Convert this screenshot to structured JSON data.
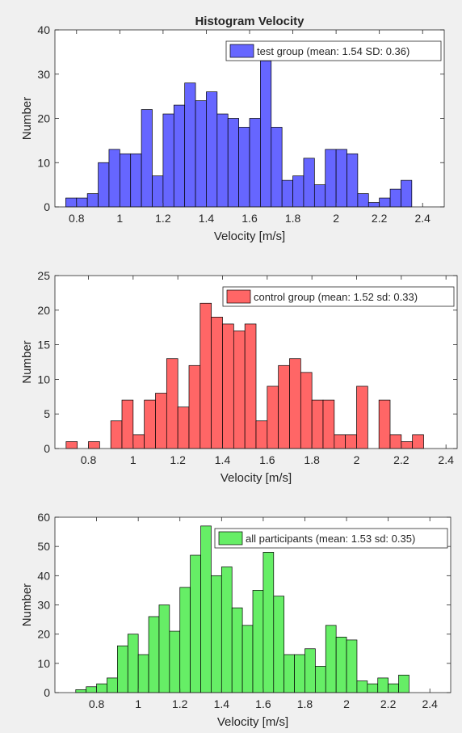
{
  "chart_data": [
    {
      "type": "bar",
      "title": "Histogram Velocity",
      "xlabel": "Velocity [m/s]",
      "ylabel": "Number",
      "xlim": [
        0.7,
        2.5
      ],
      "ylim": [
        0,
        40
      ],
      "xticks": [
        0.8,
        1,
        1.2,
        1.4,
        1.6,
        1.8,
        2,
        2.2,
        2.4
      ],
      "xtick_labels": [
        "0.8",
        "1",
        "1.2",
        "1.4",
        "1.6",
        "1.8",
        "2",
        "2.2",
        "2.4"
      ],
      "yticks": [
        0,
        10,
        20,
        30,
        40
      ],
      "ytick_labels": [
        "0",
        "10",
        "20",
        "30",
        "40"
      ],
      "bin_start": 0.75,
      "bin_width": 0.05,
      "color": "#6666ff",
      "legend": "test group  (mean: 1.54 SD: 0.36)",
      "legend_position": "top-right",
      "values": [
        2,
        2,
        3,
        10,
        13,
        12,
        12,
        22,
        7,
        21,
        23,
        28,
        24,
        26,
        21,
        20,
        18,
        20,
        33,
        18,
        6,
        7,
        11,
        5,
        13,
        13,
        12,
        3,
        1,
        2,
        4,
        6
      ]
    },
    {
      "type": "bar",
      "title": "",
      "xlabel": "Velocity [m/s]",
      "ylabel": "Number",
      "xlim": [
        0.65,
        2.45
      ],
      "ylim": [
        0,
        25
      ],
      "xticks": [
        0.8,
        1,
        1.2,
        1.4,
        1.6,
        1.8,
        2,
        2.2,
        2.4
      ],
      "xtick_labels": [
        "0.8",
        "1",
        "1.2",
        "1.4",
        "1.6",
        "1.8",
        "2",
        "2.2",
        "2.4"
      ],
      "yticks": [
        0,
        5,
        10,
        15,
        20,
        25
      ],
      "ytick_labels": [
        "0",
        "5",
        "10",
        "15",
        "20",
        "25"
      ],
      "bin_start": 0.7,
      "bin_width": 0.05,
      "color": "#ff6666",
      "legend": "control group  (mean: 1.52 sd: 0.33)",
      "legend_position": "top-right",
      "values": [
        1,
        0,
        1,
        0,
        4,
        7,
        2,
        7,
        8,
        13,
        6,
        12,
        21,
        19,
        18,
        17,
        18,
        4,
        9,
        12,
        13,
        11,
        7,
        7,
        2,
        2,
        9,
        0,
        7,
        2,
        1,
        2
      ]
    },
    {
      "type": "bar",
      "title": "",
      "xlabel": "Velocity [m/s]",
      "ylabel": "Number",
      "xlim": [
        0.6,
        2.5
      ],
      "ylim": [
        0,
        60
      ],
      "xticks": [
        0.8,
        1,
        1.2,
        1.4,
        1.6,
        1.8,
        2,
        2.2,
        2.4
      ],
      "xtick_labels": [
        "0.8",
        "1",
        "1.2",
        "1.4",
        "1.6",
        "1.8",
        "2",
        "2.2",
        "2.4"
      ],
      "yticks": [
        0,
        10,
        20,
        30,
        40,
        50,
        60
      ],
      "ytick_labels": [
        "0",
        "10",
        "20",
        "30",
        "40",
        "50",
        "60"
      ],
      "bin_start": 0.7,
      "bin_width": 0.05,
      "color": "#66ee66",
      "legend": "all participants  (mean: 1.53 sd: 0.35)",
      "legend_position": "top-right",
      "values": [
        1,
        2,
        3,
        5,
        16,
        20,
        13,
        26,
        30,
        21,
        36,
        47,
        57,
        40,
        43,
        29,
        23,
        35,
        48,
        33,
        13,
        13,
        15,
        9,
        23,
        19,
        18,
        4,
        3,
        5,
        3,
        6
      ]
    }
  ]
}
